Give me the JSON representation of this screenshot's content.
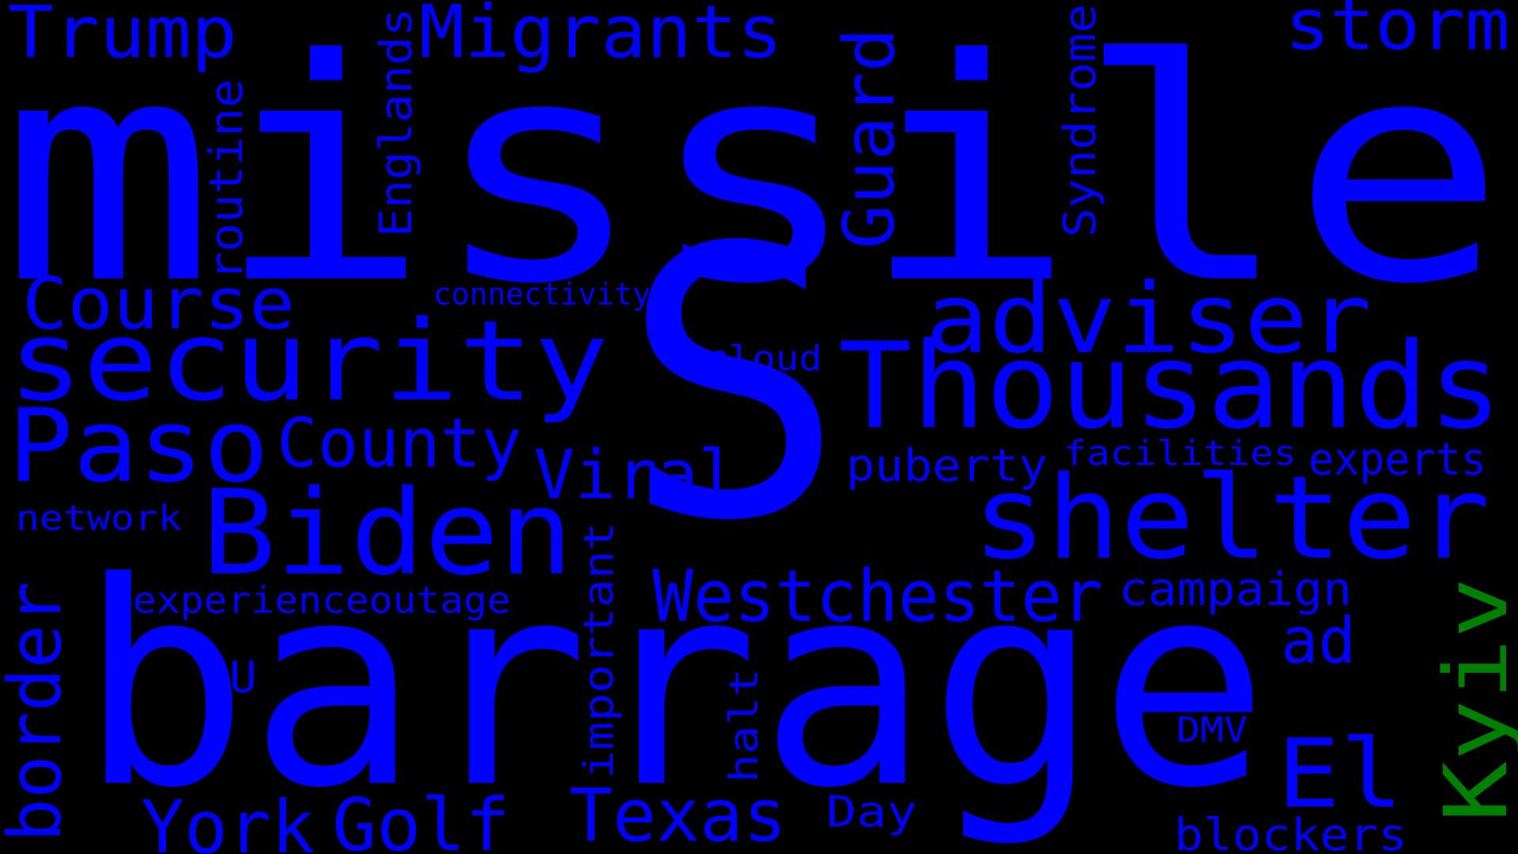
{
  "colors": {
    "background": "#000000",
    "primary_word": "#0000ff",
    "accent_word": "#008000"
  },
  "words": {
    "missile": "missile",
    "s": "S",
    "barrage": "barrage",
    "thousands": "Thousands",
    "security": "security",
    "shelter": "shelter",
    "biden": "Biden",
    "adviser": "adviser",
    "paso": "Paso",
    "westchester": "Westchester",
    "el": "El",
    "kyiv": "Kyiv",
    "texas": "Texas",
    "golf": "Golf",
    "york": "York",
    "migrants": "Migrants",
    "trump": "Trump",
    "storm": "storm",
    "course": "Course",
    "county": "County",
    "guard": "Guard",
    "viral": "Viral",
    "border": "border",
    "routine": "routine",
    "englands": "Englands",
    "syndrome": "Syndrome",
    "campaign": "campaign",
    "ad": "ad",
    "important": "important",
    "puberty": "puberty",
    "experts": "experts",
    "blockers": "blockers",
    "experienceoutage": "experienceoutage",
    "facilities": "facilities",
    "day": "Day",
    "network": "network",
    "halt": "halt",
    "cloud": "cloud",
    "dmv": "DMV",
    "u": "U",
    "connectivity": "connectivity"
  }
}
